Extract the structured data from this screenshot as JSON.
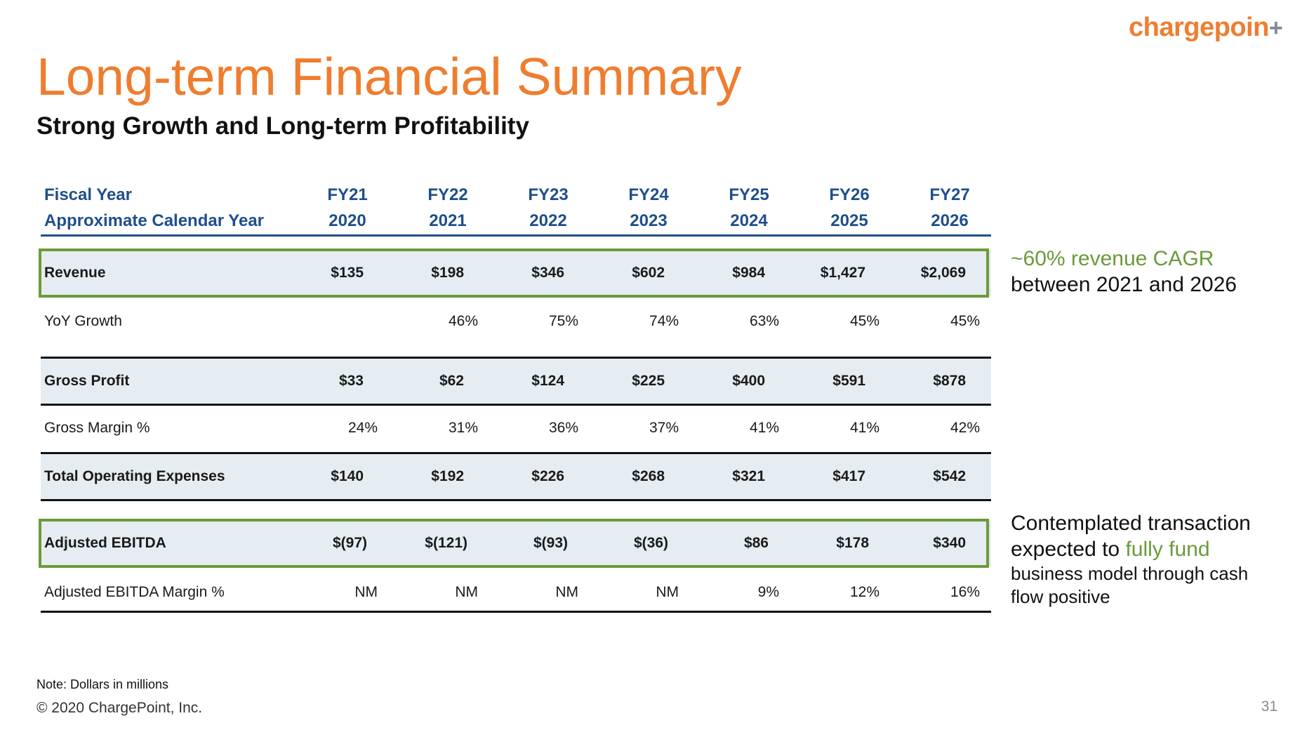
{
  "logo": {
    "text": "chargepoin",
    "suffix": "+"
  },
  "title": "Long-term Financial Summary",
  "subtitle": "Strong Growth and Long-term Profitability",
  "table": {
    "header_rows": [
      {
        "label": "Fiscal Year",
        "values": [
          "FY21",
          "FY22",
          "FY23",
          "FY24",
          "FY25",
          "FY26",
          "FY27"
        ]
      },
      {
        "label": "Approximate Calendar Year",
        "values": [
          "2020",
          "2021",
          "2022",
          "2023",
          "2024",
          "2025",
          "2026"
        ]
      }
    ],
    "rows": [
      {
        "label": "Revenue",
        "values": [
          "$135",
          "$198",
          "$346",
          "$602",
          "$984",
          "$1,427",
          "$2,069"
        ]
      },
      {
        "label": "YoY Growth",
        "values": [
          "",
          "46%",
          "75%",
          "74%",
          "63%",
          "45%",
          "45%"
        ]
      },
      {
        "label": "Gross Profit",
        "values": [
          "$33",
          "$62",
          "$124",
          "$225",
          "$400",
          "$591",
          "$878"
        ]
      },
      {
        "label": "Gross Margin %",
        "values": [
          "24%",
          "31%",
          "36%",
          "37%",
          "41%",
          "41%",
          "42%"
        ]
      },
      {
        "label": "Total Operating Expenses",
        "values": [
          "$140",
          "$192",
          "$226",
          "$268",
          "$321",
          "$417",
          "$542"
        ]
      },
      {
        "label": "Adjusted EBITDA",
        "values": [
          "$(97)",
          "$(121)",
          "$(93)",
          "$(36)",
          "$86",
          "$178",
          "$340"
        ]
      },
      {
        "label": "Adjusted EBITDA Margin %",
        "values": [
          "NM",
          "NM",
          "NM",
          "NM",
          "9%",
          "12%",
          "16%"
        ]
      }
    ]
  },
  "callouts": {
    "revenue": {
      "highlight": "~60% revenue CAGR",
      "text": "between 2021 and 2026"
    },
    "ebitda": {
      "line1": "Contemplated transaction",
      "line2_prefix": "expected to ",
      "line2_highlight": "fully fund",
      "line3": "business model through cash",
      "line4": "flow positive"
    }
  },
  "footer": {
    "note": "Note: Dollars in millions",
    "copyright": "© 2020 ChargePoint, Inc.",
    "page_number": "31"
  },
  "colors": {
    "accent_orange": "#ef7d2e",
    "header_blue": "#1f4e8c",
    "highlight_green": "#6a9b3a",
    "row_shade": "#e6edf2"
  }
}
